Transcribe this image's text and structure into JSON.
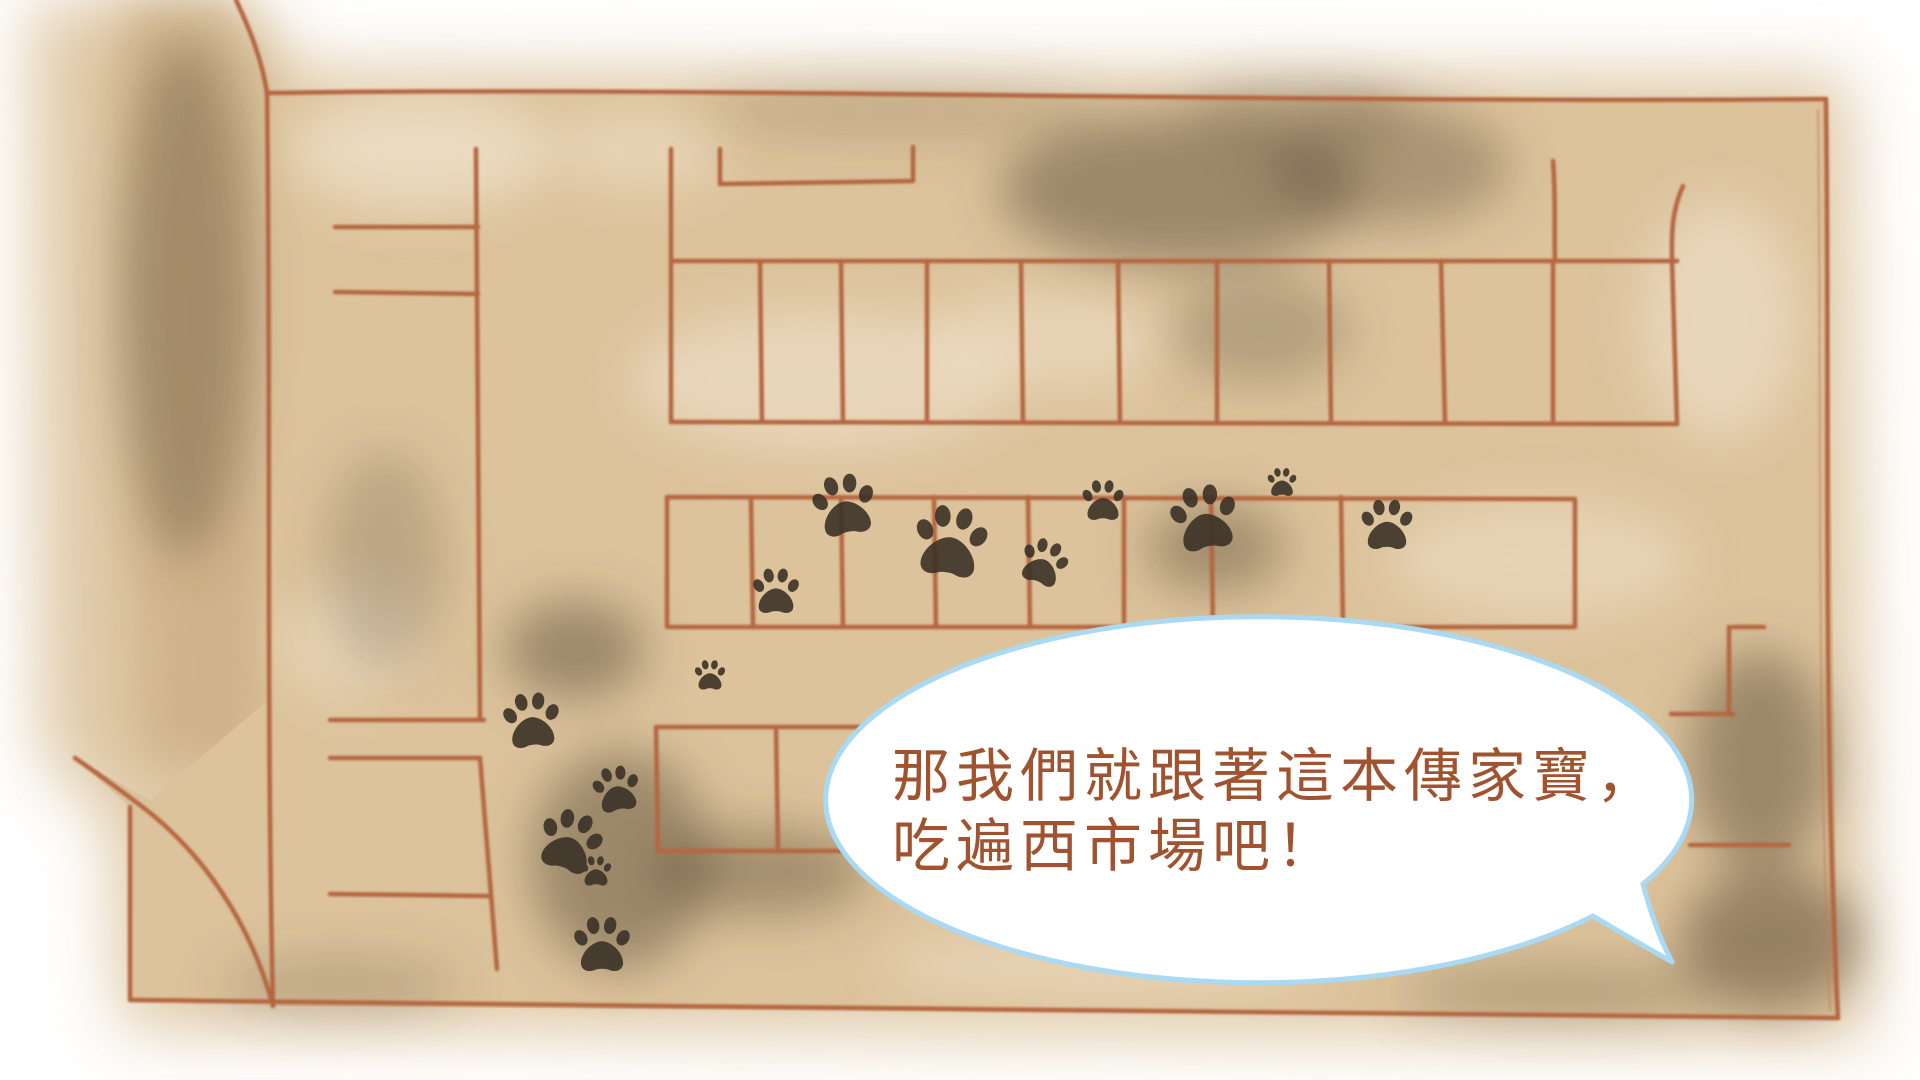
{
  "speech_bubble": {
    "line1": "那我們就跟著這本傳家寶，",
    "line2": "吃遍西市場吧！"
  },
  "icons": {
    "footprint": "paw-print-icon"
  },
  "colors": {
    "parchment": "#dcc39c",
    "map_lines": "#b56641",
    "smudge": "#5e4d37",
    "paw": "#3a3226",
    "bubble_border": "#a9d9f3",
    "bubble_fill": "#ffffff",
    "text": "#a0532e"
  }
}
